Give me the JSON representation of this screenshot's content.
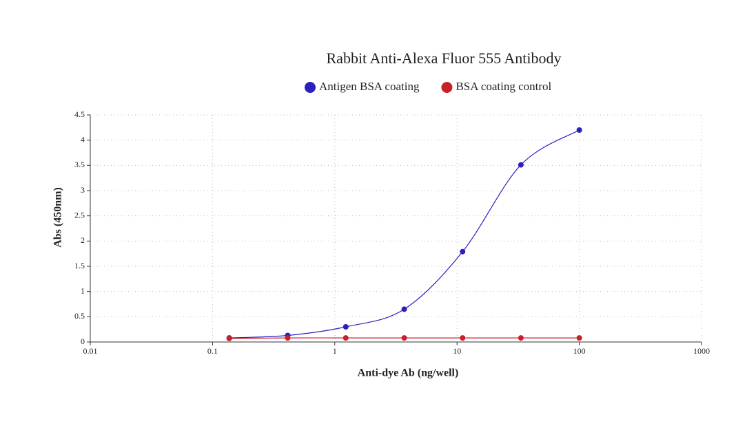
{
  "chart_data": {
    "type": "scatter",
    "title": "Rabbit Anti-Alexa Fluor 555 Antibody",
    "x_label": "Anti-dye Ab (ng/well)",
    "y_label": "Abs (450nm)",
    "x": [
      0.137,
      0.412,
      1.23,
      3.7,
      11.1,
      33.3,
      100
    ],
    "series": [
      {
        "name": "Antigen BSA coating",
        "color": "#2a1fbf",
        "values": [
          0.08,
          0.13,
          0.3,
          0.65,
          1.79,
          3.51,
          4.2
        ]
      },
      {
        "name": "BSA coating control",
        "color": "#c8202a",
        "values": [
          0.07,
          0.08,
          0.08,
          0.08,
          0.08,
          0.08,
          0.08
        ]
      }
    ],
    "xscale": "log",
    "xlim": [
      0.01,
      1000
    ],
    "xticks": [
      0.01,
      0.1,
      1,
      10,
      100,
      1000
    ],
    "ylim": [
      0,
      4.5
    ],
    "yticks": [
      0,
      0.5,
      1,
      1.5,
      2,
      2.5,
      3,
      3.5,
      4,
      4.5
    ],
    "grid": true,
    "legend": "top"
  }
}
